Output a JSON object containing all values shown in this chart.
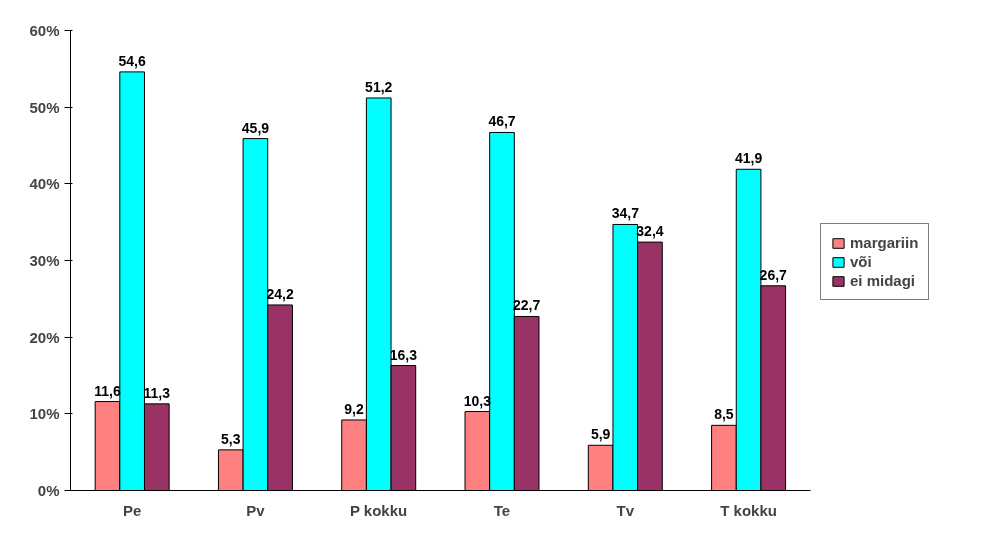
{
  "chart_data": {
    "type": "bar",
    "categories": [
      "Pe",
      "Pv",
      "P kokku",
      "Te",
      "Tv",
      "T kokku"
    ],
    "series": [
      {
        "name": "margariin",
        "color": "#ff8080",
        "values": [
          11.6,
          5.3,
          9.2,
          10.3,
          5.9,
          8.5
        ],
        "value_labels": [
          "11,6",
          "5,3",
          "9,2",
          "10,3",
          "5,9",
          "8,5"
        ]
      },
      {
        "name": "või",
        "color": "#00ffff",
        "values": [
          54.6,
          45.9,
          51.2,
          46.7,
          34.7,
          41.9
        ],
        "value_labels": [
          "54,6",
          "45,9",
          "51,2",
          "46,7",
          "34,7",
          "41,9"
        ]
      },
      {
        "name": "ei midagi",
        "color": "#993366",
        "values": [
          11.3,
          24.2,
          16.3,
          22.7,
          32.4,
          26.7
        ],
        "value_labels": [
          "11,3",
          "24,2",
          "16,3",
          "22,7",
          "32,4",
          "26,7"
        ]
      }
    ],
    "ylim": [
      0,
      60
    ],
    "yticks": [
      {
        "value": 0,
        "label": "0%"
      },
      {
        "value": 10,
        "label": "10%"
      },
      {
        "value": 20,
        "label": "20%"
      },
      {
        "value": 30,
        "label": "30%"
      },
      {
        "value": 40,
        "label": "40%"
      },
      {
        "value": 50,
        "label": "50%"
      },
      {
        "value": 60,
        "label": "60%"
      }
    ],
    "grid": false,
    "legend": "right"
  }
}
